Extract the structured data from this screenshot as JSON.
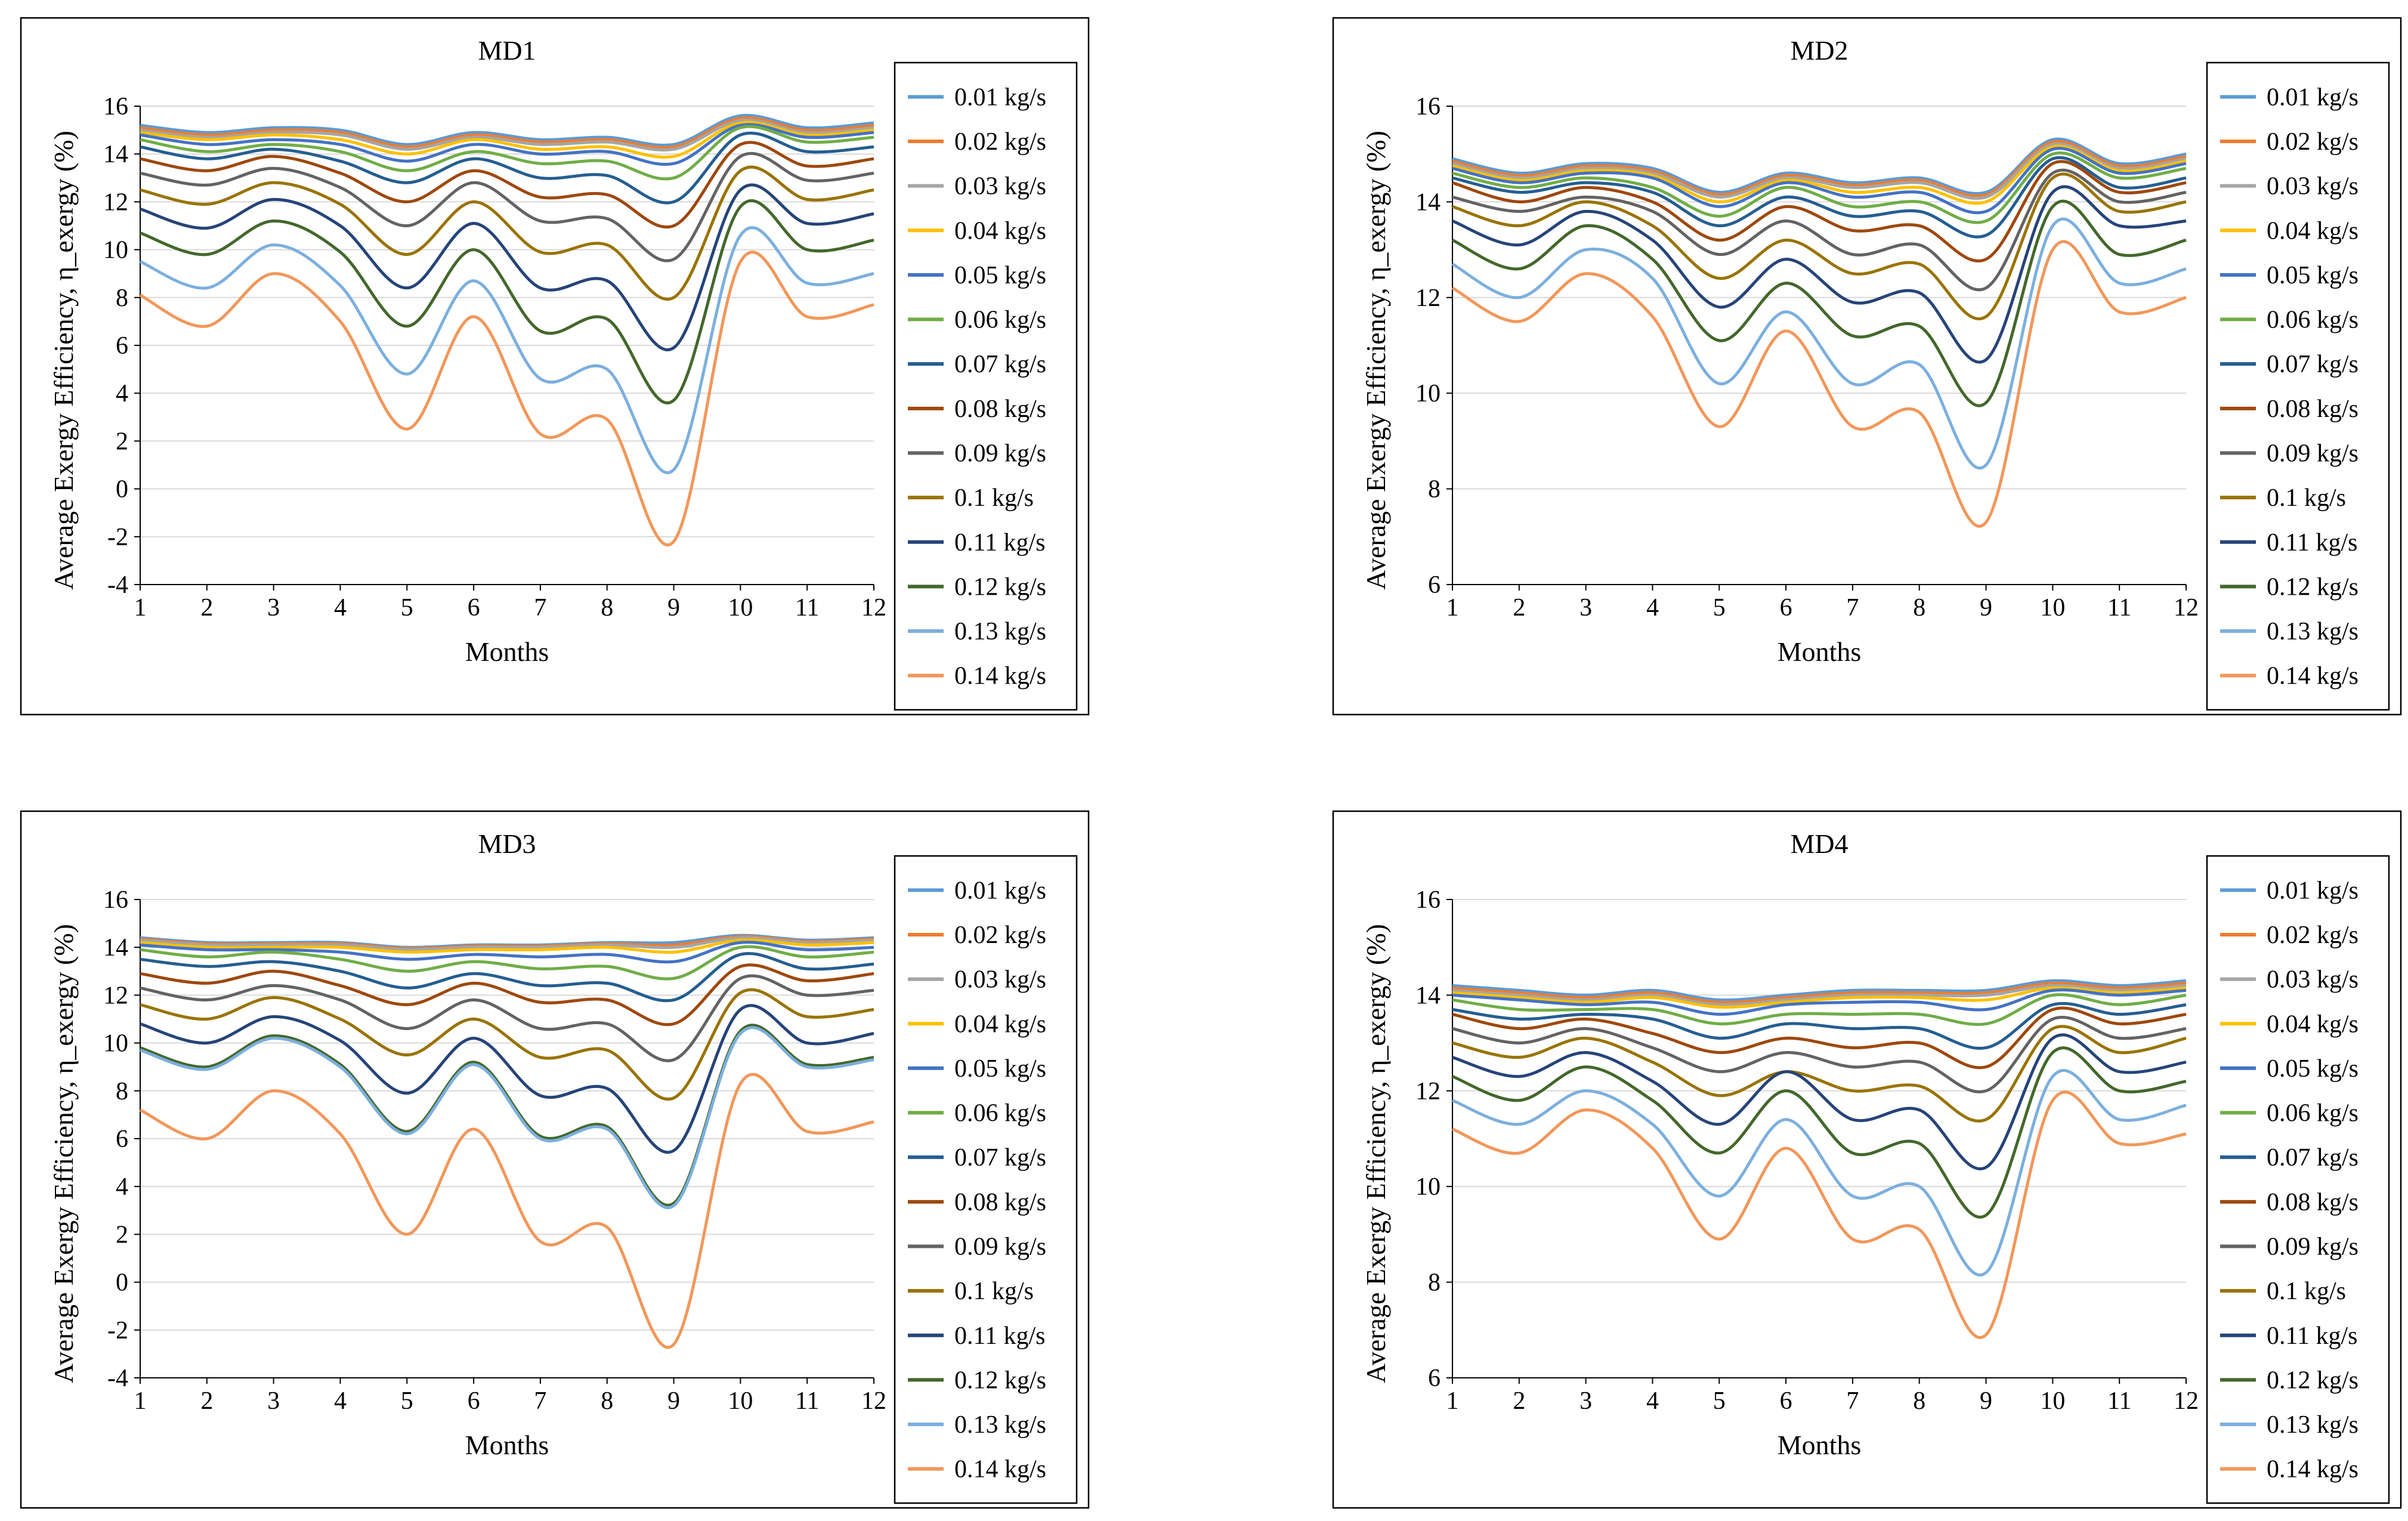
{
  "figure": {
    "legend_labels": [
      "0.01 kg/s",
      "0.02 kg/s",
      "0.03 kg/s",
      "0.04 kg/s",
      "0.05 kg/s",
      "0.06 kg/s",
      "0.07 kg/s",
      "0.08 kg/s",
      "0.09 kg/s",
      "0.1 kg/s",
      "0.11 kg/s",
      "0.12 kg/s",
      "0.13 kg/s",
      "0.14 kg/s"
    ],
    "series_colors": [
      "#5B9BD5",
      "#ED7D31",
      "#A5A5A5",
      "#FFC000",
      "#4472C4",
      "#70AD47",
      "#255E91",
      "#9E480E",
      "#636363",
      "#997300",
      "#264478",
      "#43682B",
      "#7CAFDD",
      "#F1975A"
    ]
  },
  "chart_data": [
    {
      "type": "line",
      "title": "MD1",
      "xlabel": "Months",
      "ylabel": "Average Exergy Efficiency, η_exergy (%)",
      "x": [
        1,
        2,
        3,
        4,
        5,
        6,
        7,
        8,
        9,
        10,
        11,
        12
      ],
      "ylim": [
        -4,
        16
      ],
      "yticks": [
        -4,
        -2,
        0,
        2,
        4,
        6,
        8,
        10,
        12,
        14,
        16
      ],
      "grid": true,
      "legend": "right",
      "series": [
        {
          "name": "0.01 kg/s",
          "values": [
            15.2,
            14.9,
            15.1,
            15.0,
            14.4,
            14.9,
            14.6,
            14.7,
            14.4,
            15.6,
            15.1,
            15.3
          ]
        },
        {
          "name": "0.02 kg/s",
          "values": [
            15.1,
            14.8,
            15.0,
            14.9,
            14.3,
            14.8,
            14.5,
            14.6,
            14.3,
            15.5,
            15.0,
            15.2
          ]
        },
        {
          "name": "0.03 kg/s",
          "values": [
            15.0,
            14.7,
            14.9,
            14.8,
            14.2,
            14.7,
            14.4,
            14.5,
            14.2,
            15.4,
            14.9,
            15.1
          ]
        },
        {
          "name": "0.04 kg/s",
          "values": [
            14.9,
            14.6,
            14.8,
            14.6,
            14.0,
            14.6,
            14.2,
            14.3,
            13.9,
            15.3,
            14.8,
            15.0
          ]
        },
        {
          "name": "0.05 kg/s",
          "values": [
            14.8,
            14.4,
            14.6,
            14.4,
            13.7,
            14.4,
            14.0,
            14.1,
            13.6,
            15.2,
            14.7,
            14.9
          ]
        },
        {
          "name": "0.06 kg/s",
          "values": [
            14.6,
            14.1,
            14.4,
            14.1,
            13.3,
            14.1,
            13.6,
            13.7,
            13.0,
            15.1,
            14.5,
            14.7
          ]
        },
        {
          "name": "0.07 kg/s",
          "values": [
            14.3,
            13.8,
            14.2,
            13.7,
            12.8,
            13.8,
            13.0,
            13.1,
            12.0,
            14.8,
            14.1,
            14.3
          ]
        },
        {
          "name": "0.08 kg/s",
          "values": [
            13.8,
            13.3,
            13.9,
            13.2,
            12.0,
            13.3,
            12.2,
            12.3,
            11.0,
            14.4,
            13.5,
            13.8
          ]
        },
        {
          "name": "0.09 kg/s",
          "values": [
            13.2,
            12.7,
            13.4,
            12.6,
            11.0,
            12.8,
            11.2,
            11.3,
            9.6,
            13.9,
            12.9,
            13.2
          ]
        },
        {
          "name": "0.1 kg/s",
          "values": [
            12.5,
            11.9,
            12.8,
            11.9,
            9.8,
            12.0,
            9.9,
            10.2,
            8.0,
            13.3,
            12.1,
            12.5
          ]
        },
        {
          "name": "0.11 kg/s",
          "values": [
            11.7,
            10.9,
            12.1,
            11.0,
            8.4,
            11.1,
            8.4,
            8.7,
            5.9,
            12.5,
            11.1,
            11.5
          ]
        },
        {
          "name": "0.12 kg/s",
          "values": [
            10.7,
            9.8,
            11.2,
            9.9,
            6.8,
            10.0,
            6.6,
            7.1,
            3.7,
            11.8,
            10.0,
            10.4
          ]
        },
        {
          "name": "0.13 kg/s",
          "values": [
            9.5,
            8.4,
            10.2,
            8.5,
            4.8,
            8.7,
            4.6,
            5.0,
            0.8,
            10.6,
            8.6,
            9.0
          ]
        },
        {
          "name": "0.14 kg/s",
          "values": [
            8.1,
            6.8,
            9.0,
            7.0,
            2.5,
            7.2,
            2.3,
            2.9,
            -2.2,
            9.5,
            7.2,
            7.7
          ]
        }
      ]
    },
    {
      "type": "line",
      "title": "MD2",
      "xlabel": "Months",
      "ylabel": "Average Exergy Efficiency, η_exergy (%)",
      "x": [
        1,
        2,
        3,
        4,
        5,
        6,
        7,
        8,
        9,
        10,
        11,
        12
      ],
      "ylim": [
        6,
        16
      ],
      "yticks": [
        6,
        8,
        10,
        12,
        14,
        16
      ],
      "grid": true,
      "legend": "right",
      "series": [
        {
          "name": "0.01 kg/s",
          "values": [
            14.9,
            14.6,
            14.8,
            14.7,
            14.2,
            14.6,
            14.4,
            14.5,
            14.2,
            15.3,
            14.8,
            15.0
          ]
        },
        {
          "name": "0.02 kg/s",
          "values": [
            14.85,
            14.55,
            14.75,
            14.65,
            14.15,
            14.55,
            14.35,
            14.45,
            14.15,
            15.25,
            14.75,
            14.95
          ]
        },
        {
          "name": "0.03 kg/s",
          "values": [
            14.8,
            14.5,
            14.7,
            14.6,
            14.1,
            14.5,
            14.3,
            14.4,
            14.1,
            15.2,
            14.7,
            14.9
          ]
        },
        {
          "name": "0.04 kg/s",
          "values": [
            14.75,
            14.45,
            14.65,
            14.55,
            14.0,
            14.45,
            14.2,
            14.3,
            14.0,
            15.15,
            14.65,
            14.85
          ]
        },
        {
          "name": "0.05 kg/s",
          "values": [
            14.7,
            14.4,
            14.6,
            14.5,
            13.9,
            14.4,
            14.1,
            14.2,
            13.8,
            15.1,
            14.6,
            14.8
          ]
        },
        {
          "name": "0.06 kg/s",
          "values": [
            14.6,
            14.3,
            14.5,
            14.3,
            13.7,
            14.3,
            13.9,
            14.0,
            13.6,
            15.0,
            14.5,
            14.7
          ]
        },
        {
          "name": "0.07 kg/s",
          "values": [
            14.5,
            14.2,
            14.4,
            14.2,
            13.5,
            14.1,
            13.7,
            13.8,
            13.3,
            14.9,
            14.3,
            14.5
          ]
        },
        {
          "name": "0.08 kg/s",
          "values": [
            14.4,
            14.0,
            14.3,
            14.0,
            13.2,
            13.9,
            13.4,
            13.5,
            12.8,
            14.8,
            14.2,
            14.4
          ]
        },
        {
          "name": "0.09 kg/s",
          "values": [
            14.1,
            13.8,
            14.1,
            13.8,
            12.9,
            13.6,
            12.9,
            13.1,
            12.2,
            14.6,
            14.0,
            14.2
          ]
        },
        {
          "name": "0.1 kg/s",
          "values": [
            13.9,
            13.5,
            14.0,
            13.5,
            12.4,
            13.2,
            12.5,
            12.7,
            11.6,
            14.5,
            13.8,
            14.0
          ]
        },
        {
          "name": "0.11 kg/s",
          "values": [
            13.6,
            13.1,
            13.8,
            13.2,
            11.8,
            12.8,
            11.9,
            12.1,
            10.7,
            14.2,
            13.5,
            13.6
          ]
        },
        {
          "name": "0.12 kg/s",
          "values": [
            13.2,
            12.6,
            13.5,
            12.8,
            11.1,
            12.3,
            11.2,
            11.4,
            9.8,
            13.9,
            12.9,
            13.2
          ]
        },
        {
          "name": "0.13 kg/s",
          "values": [
            12.7,
            12.0,
            13.0,
            12.4,
            10.2,
            11.7,
            10.2,
            10.6,
            8.5,
            13.5,
            12.3,
            12.6
          ]
        },
        {
          "name": "0.14 kg/s",
          "values": [
            12.2,
            11.5,
            12.5,
            11.6,
            9.3,
            11.3,
            9.3,
            9.6,
            7.3,
            13.0,
            11.7,
            12.0
          ]
        }
      ]
    },
    {
      "type": "line",
      "title": "MD3",
      "xlabel": "Months",
      "ylabel": "Average Exergy Efficiency, η_exergy (%)",
      "x": [
        1,
        2,
        3,
        4,
        5,
        6,
        7,
        8,
        9,
        10,
        11,
        12
      ],
      "ylim": [
        -4,
        16
      ],
      "yticks": [
        -4,
        -2,
        0,
        2,
        4,
        6,
        8,
        10,
        12,
        14,
        16
      ],
      "grid": true,
      "legend": "right",
      "series": [
        {
          "name": "0.01 kg/s",
          "values": [
            14.4,
            14.2,
            14.2,
            14.2,
            14.0,
            14.1,
            14.1,
            14.2,
            14.2,
            14.5,
            14.3,
            14.4
          ]
        },
        {
          "name": "0.02 kg/s",
          "values": [
            14.35,
            14.15,
            14.15,
            14.15,
            13.95,
            14.05,
            14.05,
            14.15,
            14.1,
            14.45,
            14.25,
            14.35
          ]
        },
        {
          "name": "0.03 kg/s",
          "values": [
            14.3,
            14.1,
            14.1,
            14.1,
            13.9,
            14.0,
            14.0,
            14.1,
            14.0,
            14.4,
            14.2,
            14.3
          ]
        },
        {
          "name": "0.04 kg/s",
          "values": [
            14.2,
            14.0,
            14.0,
            14.0,
            13.8,
            13.9,
            13.9,
            14.0,
            13.8,
            14.3,
            14.1,
            14.2
          ]
        },
        {
          "name": "0.05 kg/s",
          "values": [
            14.1,
            13.9,
            13.9,
            13.8,
            13.5,
            13.7,
            13.6,
            13.7,
            13.4,
            14.2,
            13.9,
            14.0
          ]
        },
        {
          "name": "0.06 kg/s",
          "values": [
            13.9,
            13.6,
            13.8,
            13.5,
            13.0,
            13.4,
            13.1,
            13.2,
            12.7,
            14.0,
            13.6,
            13.8
          ]
        },
        {
          "name": "0.07 kg/s",
          "values": [
            13.5,
            13.2,
            13.4,
            13.0,
            12.3,
            12.9,
            12.4,
            12.5,
            11.8,
            13.7,
            13.1,
            13.3
          ]
        },
        {
          "name": "0.08 kg/s",
          "values": [
            12.9,
            12.5,
            13.0,
            12.4,
            11.6,
            12.5,
            11.7,
            11.8,
            10.8,
            13.2,
            12.6,
            12.9
          ]
        },
        {
          "name": "0.09 kg/s",
          "values": [
            12.3,
            11.8,
            12.4,
            11.8,
            10.6,
            11.8,
            10.6,
            10.8,
            9.3,
            12.7,
            12.0,
            12.2
          ]
        },
        {
          "name": "0.1 kg/s",
          "values": [
            11.6,
            11.0,
            11.9,
            11.0,
            9.5,
            11.0,
            9.4,
            9.7,
            7.7,
            12.1,
            11.1,
            11.4
          ]
        },
        {
          "name": "0.11 kg/s",
          "values": [
            10.8,
            10.0,
            11.1,
            10.1,
            7.9,
            10.2,
            7.8,
            8.1,
            5.5,
            11.4,
            10.0,
            10.4
          ]
        },
        {
          "name": "0.12 kg/s",
          "values": [
            9.8,
            9.0,
            10.3,
            9.1,
            6.3,
            9.2,
            6.1,
            6.5,
            3.3,
            10.5,
            9.1,
            9.4
          ]
        },
        {
          "name": "0.13 kg/s",
          "values": [
            9.7,
            8.9,
            10.2,
            9.0,
            6.2,
            9.1,
            6.0,
            6.4,
            3.2,
            10.4,
            9.0,
            9.3
          ]
        },
        {
          "name": "0.14 kg/s",
          "values": [
            7.2,
            6.0,
            8.0,
            6.2,
            2.0,
            6.4,
            1.7,
            2.3,
            -2.6,
            8.3,
            6.3,
            6.7
          ]
        }
      ]
    },
    {
      "type": "line",
      "title": "MD4",
      "xlabel": "Months",
      "ylabel": "Average Exergy Efficiency, η_exergy (%)",
      "x": [
        1,
        2,
        3,
        4,
        5,
        6,
        7,
        8,
        9,
        10,
        11,
        12
      ],
      "ylim": [
        6,
        16
      ],
      "yticks": [
        6,
        8,
        10,
        12,
        14,
        16
      ],
      "grid": true,
      "legend": "right",
      "series": [
        {
          "name": "0.01 kg/s",
          "values": [
            14.2,
            14.1,
            14.0,
            14.1,
            13.9,
            14.0,
            14.1,
            14.1,
            14.1,
            14.3,
            14.2,
            14.3
          ]
        },
        {
          "name": "0.02 kg/s",
          "values": [
            14.15,
            14.05,
            13.95,
            14.05,
            13.85,
            13.95,
            14.05,
            14.05,
            14.05,
            14.25,
            14.15,
            14.25
          ]
        },
        {
          "name": "0.03 kg/s",
          "values": [
            14.1,
            14.0,
            13.9,
            14.0,
            13.8,
            13.9,
            14.0,
            14.0,
            14.0,
            14.2,
            14.1,
            14.2
          ]
        },
        {
          "name": "0.04 kg/s",
          "values": [
            14.05,
            13.95,
            13.85,
            13.95,
            13.75,
            13.85,
            13.95,
            13.95,
            13.9,
            14.15,
            14.05,
            14.15
          ]
        },
        {
          "name": "0.05 kg/s",
          "values": [
            14.0,
            13.9,
            13.8,
            13.85,
            13.6,
            13.8,
            13.85,
            13.85,
            13.7,
            14.1,
            14.0,
            14.1
          ]
        },
        {
          "name": "0.06 kg/s",
          "values": [
            13.9,
            13.7,
            13.7,
            13.7,
            13.4,
            13.6,
            13.6,
            13.6,
            13.4,
            14.0,
            13.8,
            14.0
          ]
        },
        {
          "name": "0.07 kg/s",
          "values": [
            13.7,
            13.5,
            13.6,
            13.5,
            13.1,
            13.4,
            13.3,
            13.3,
            12.9,
            13.8,
            13.6,
            13.8
          ]
        },
        {
          "name": "0.08 kg/s",
          "values": [
            13.6,
            13.3,
            13.5,
            13.2,
            12.8,
            13.1,
            12.9,
            13.0,
            12.5,
            13.7,
            13.4,
            13.6
          ]
        },
        {
          "name": "0.09 kg/s",
          "values": [
            13.3,
            13.0,
            13.3,
            12.9,
            12.4,
            12.8,
            12.5,
            12.6,
            12.0,
            13.5,
            13.1,
            13.3
          ]
        },
        {
          "name": "0.1 kg/s",
          "values": [
            13.0,
            12.7,
            13.1,
            12.6,
            11.9,
            12.4,
            12.0,
            12.1,
            11.4,
            13.3,
            12.8,
            13.1
          ]
        },
        {
          "name": "0.11 kg/s",
          "values": [
            12.7,
            12.3,
            12.8,
            12.2,
            11.3,
            12.4,
            11.4,
            11.6,
            10.4,
            13.1,
            12.4,
            12.6
          ]
        },
        {
          "name": "0.12 kg/s",
          "values": [
            12.3,
            11.8,
            12.5,
            11.8,
            10.7,
            12.0,
            10.7,
            10.9,
            9.4,
            12.8,
            12.0,
            12.2
          ]
        },
        {
          "name": "0.13 kg/s",
          "values": [
            11.8,
            11.3,
            12.0,
            11.3,
            9.8,
            11.4,
            9.8,
            10.0,
            8.2,
            12.3,
            11.4,
            11.7
          ]
        },
        {
          "name": "0.14 kg/s",
          "values": [
            11.2,
            10.7,
            11.6,
            10.8,
            8.9,
            10.8,
            8.9,
            9.1,
            6.9,
            11.8,
            10.9,
            11.1
          ]
        }
      ]
    }
  ]
}
